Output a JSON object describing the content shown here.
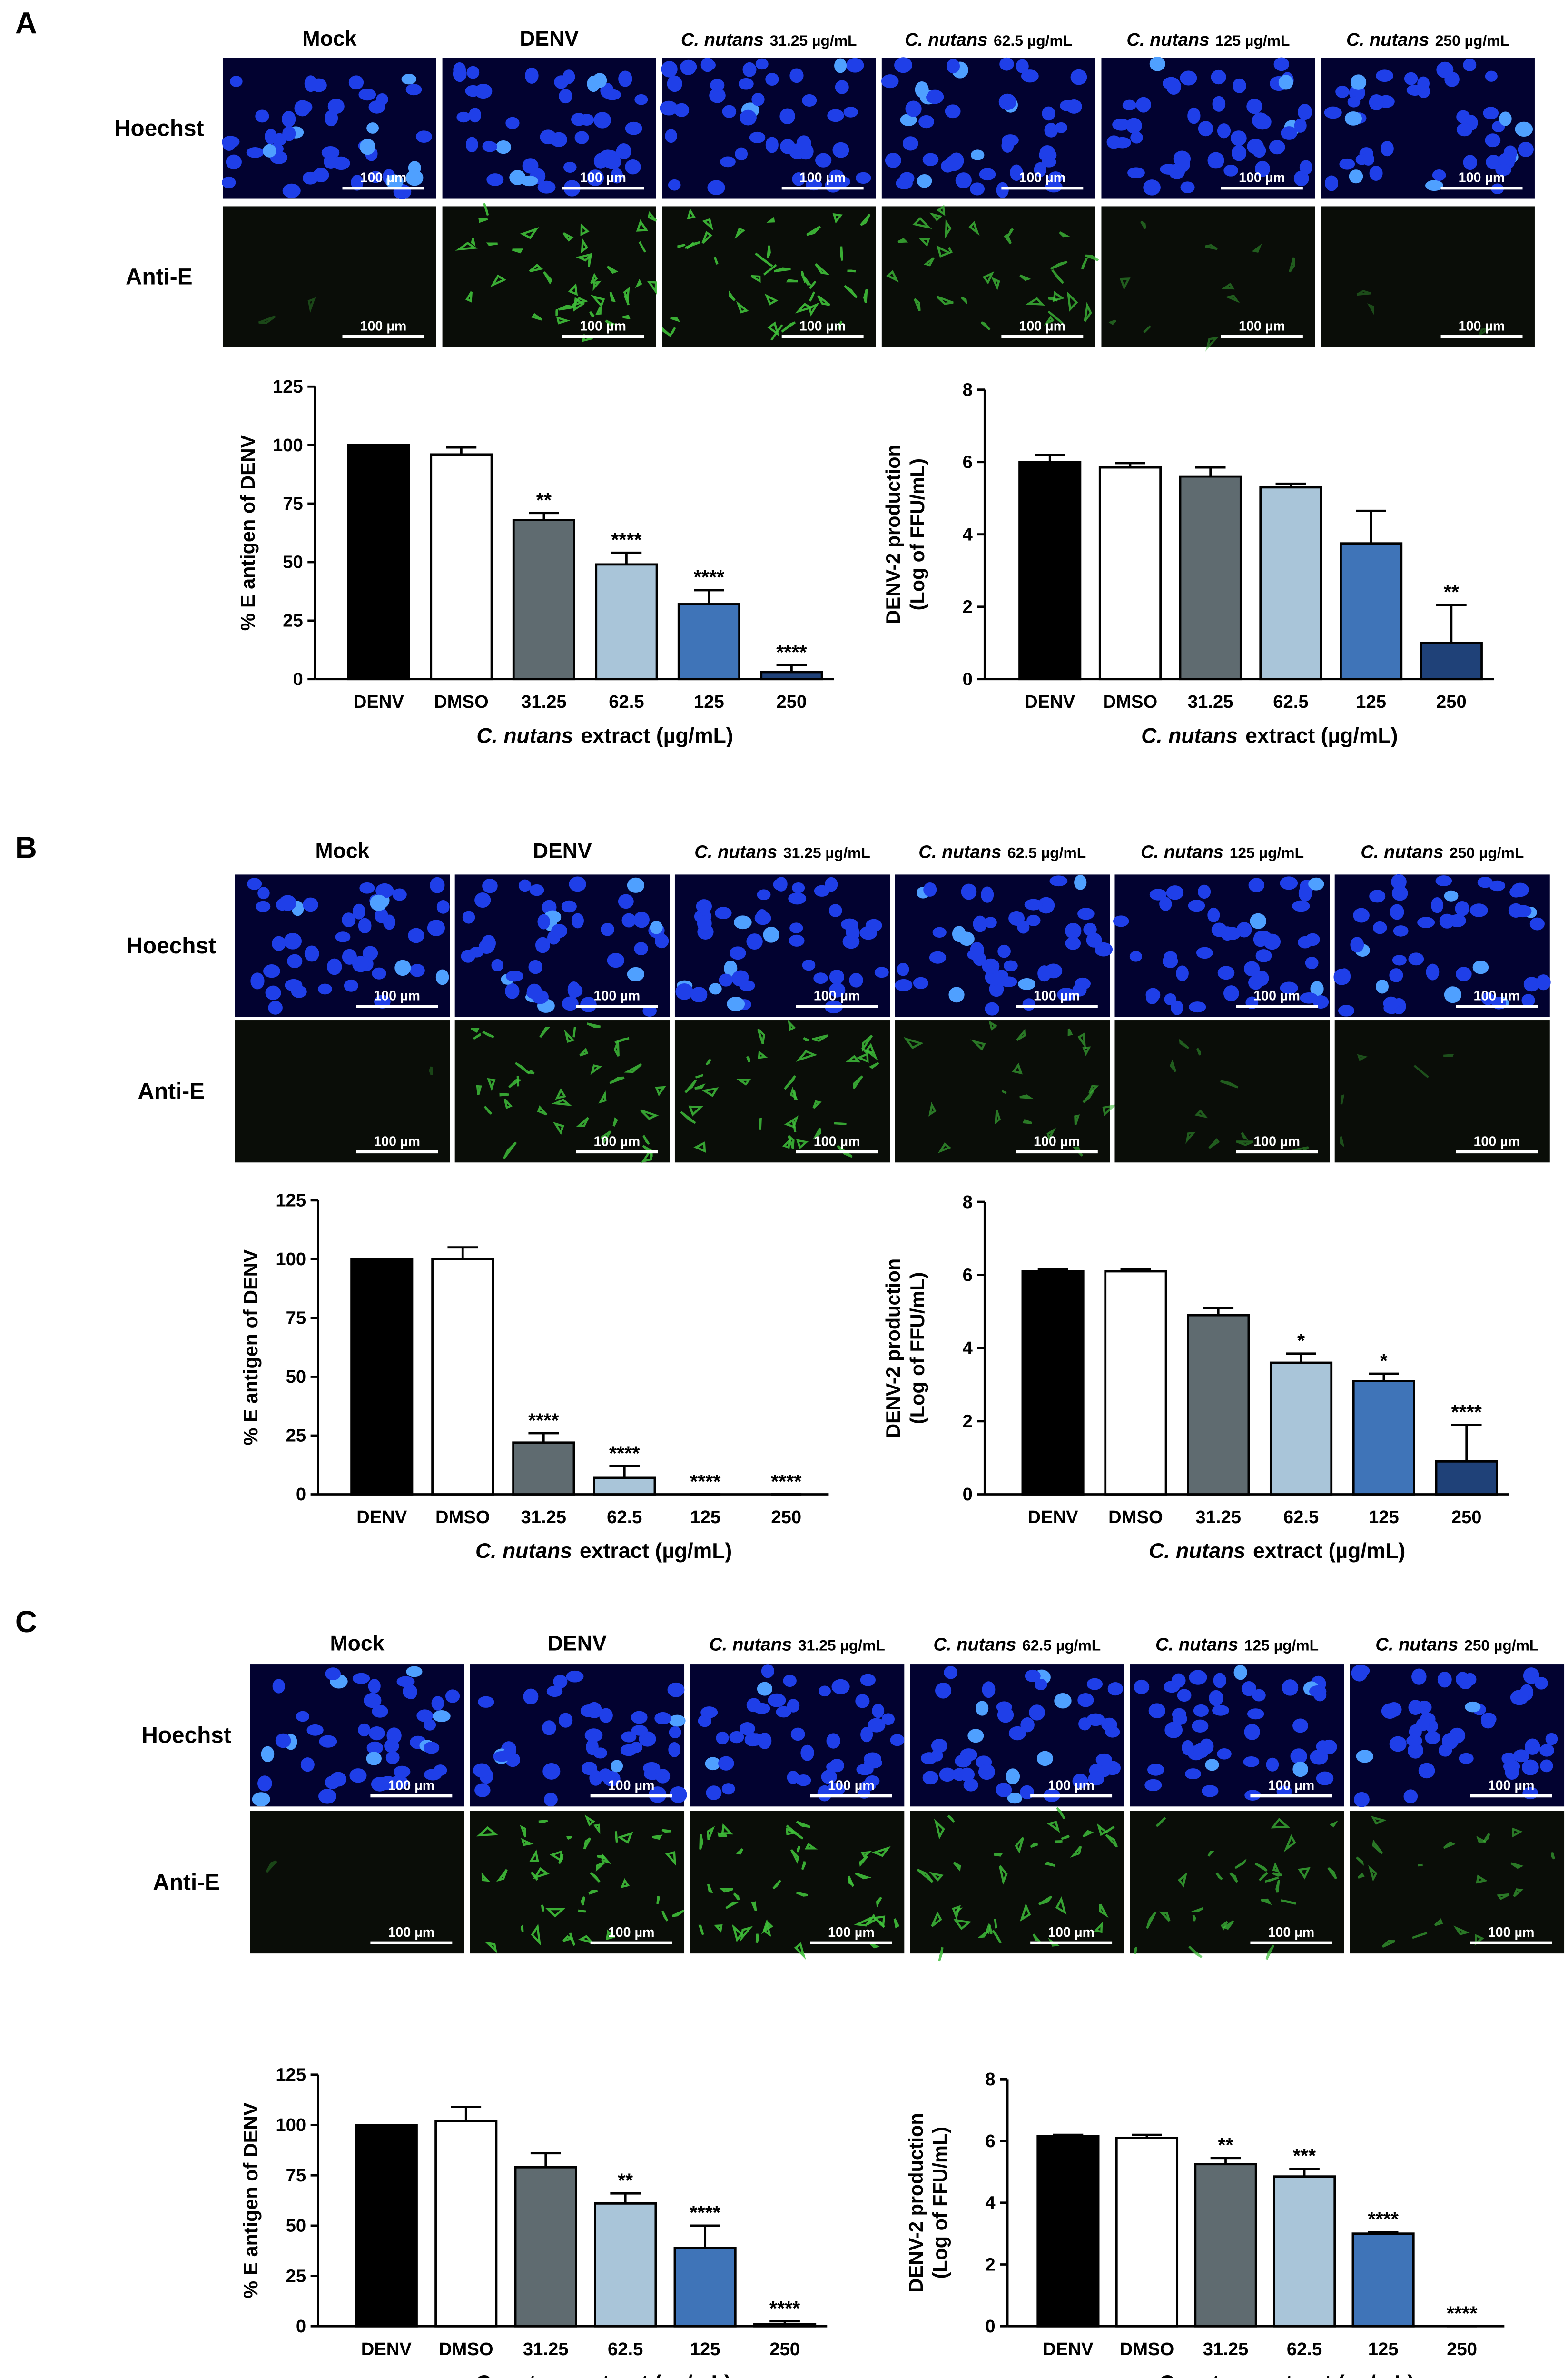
{
  "panels": [
    {
      "letter": "A",
      "columns": [
        {
          "label": "Mock"
        },
        {
          "label": "DENV"
        },
        {
          "species": "C. nutans",
          "dose": "31.25 µg/mL"
        },
        {
          "species": "C. nutans",
          "dose": "62.5 µg/mL"
        },
        {
          "species": "C. nutans",
          "dose": "125 µg/mL"
        },
        {
          "species": "C. nutans",
          "dose": "250 µg/mL"
        }
      ],
      "rows": [
        "Hoechst",
        "Anti-E"
      ],
      "scale_bar": "100 µm"
    },
    {
      "letter": "B",
      "columns": [
        {
          "label": "Mock"
        },
        {
          "label": "DENV"
        },
        {
          "species": "C. nutans",
          "dose": "31.25 µg/mL"
        },
        {
          "species": "C. nutans",
          "dose": "62.5 µg/mL"
        },
        {
          "species": "C. nutans",
          "dose": "125 µg/mL"
        },
        {
          "species": "C. nutans",
          "dose": "250 µg/mL"
        }
      ],
      "rows": [
        "Hoechst",
        "Anti-E"
      ],
      "scale_bar": "100 µm"
    },
    {
      "letter": "C",
      "columns": [
        {
          "label": "Mock"
        },
        {
          "label": "DENV"
        },
        {
          "species": "C. nutans",
          "dose": "31.25 µg/mL"
        },
        {
          "species": "C. nutans",
          "dose": "62.5 µg/mL"
        },
        {
          "species": "C. nutans",
          "dose": "125 µg/mL"
        },
        {
          "species": "C. nutans",
          "dose": "250 µg/mL"
        }
      ],
      "rows": [
        "Hoechst",
        "Anti-E"
      ],
      "scale_bar": "100 µm"
    }
  ],
  "chart_data": [
    {
      "type": "bar",
      "y_label": [
        "% E antigen of DENV"
      ],
      "x_label_italic": "C. nutans",
      "x_label": "extract (µg/mL)",
      "categories": [
        "DENV",
        "DMSO",
        "31.25",
        "62.5",
        "125",
        "250"
      ],
      "colors": [
        "#000000",
        "#ffffff",
        "#5f6b70",
        "#a9c5d9",
        "#3f74b8",
        "#1f4178"
      ],
      "values": [
        100,
        96,
        68,
        49,
        32,
        3
      ],
      "errors": [
        0,
        3,
        3,
        5,
        6,
        3
      ],
      "annotations": [
        null,
        null,
        "**",
        "****",
        "****",
        "****"
      ],
      "ylim": [
        0,
        125
      ],
      "yticks": [
        0,
        25,
        50,
        75,
        100,
        125
      ]
    },
    {
      "type": "bar",
      "y_label": [
        "DENV-2 production",
        "(Log of FFU/mL)"
      ],
      "x_label_italic": "C. nutans",
      "x_label": "extract (µg/mL)",
      "categories": [
        "DENV",
        "DMSO",
        "31.25",
        "62.5",
        "125",
        "250"
      ],
      "colors": [
        "#000000",
        "#ffffff",
        "#5f6b70",
        "#a9c5d9",
        "#3f74b8",
        "#1f4178"
      ],
      "values": [
        6.0,
        5.85,
        5.6,
        5.3,
        3.75,
        1.0
      ],
      "errors": [
        0.2,
        0.12,
        0.25,
        0.1,
        0.9,
        1.05
      ],
      "annotations": [
        null,
        null,
        null,
        null,
        null,
        "**"
      ],
      "ylim": [
        0,
        8
      ],
      "yticks": [
        0,
        2,
        4,
        6,
        8
      ]
    },
    {
      "type": "bar",
      "y_label": [
        "% E antigen of DENV"
      ],
      "x_label_italic": "C. nutans",
      "x_label": "extract (µg/mL)",
      "categories": [
        "DENV",
        "DMSO",
        "31.25",
        "62.5",
        "125",
        "250"
      ],
      "colors": [
        "#000000",
        "#ffffff",
        "#5f6b70",
        "#a9c5d9",
        "#3f74b8",
        "#1f4178"
      ],
      "values": [
        100,
        100,
        22,
        7,
        0,
        0
      ],
      "errors": [
        0,
        5,
        4,
        5,
        0,
        0
      ],
      "annotations": [
        null,
        null,
        "****",
        "****",
        "****",
        "****"
      ],
      "ylim": [
        0,
        125
      ],
      "yticks": [
        0,
        25,
        50,
        75,
        100,
        125
      ]
    },
    {
      "type": "bar",
      "y_label": [
        "DENV-2 production",
        "(Log of FFU/mL)"
      ],
      "x_label_italic": "C. nutans",
      "x_label": "extract (µg/mL)",
      "categories": [
        "DENV",
        "DMSO",
        "31.25",
        "62.5",
        "125",
        "250"
      ],
      "colors": [
        "#000000",
        "#ffffff",
        "#5f6b70",
        "#a9c5d9",
        "#3f74b8",
        "#1f4178"
      ],
      "values": [
        6.1,
        6.1,
        4.9,
        3.6,
        3.1,
        0.9
      ],
      "errors": [
        0.05,
        0.07,
        0.2,
        0.25,
        0.2,
        1.0
      ],
      "annotations": [
        null,
        null,
        null,
        "*",
        "*",
        "****"
      ],
      "ylim": [
        0,
        8
      ],
      "yticks": [
        0,
        2,
        4,
        6,
        8
      ]
    },
    {
      "type": "bar",
      "y_label": [
        "% E antigen of DENV"
      ],
      "x_label_italic": "C. nutans",
      "x_label": "extract (µg/mL)",
      "categories": [
        "DENV",
        "DMSO",
        "31.25",
        "62.5",
        "125",
        "250"
      ],
      "colors": [
        "#000000",
        "#ffffff",
        "#5f6b70",
        "#a9c5d9",
        "#3f74b8",
        "#1f4178"
      ],
      "values": [
        100,
        102,
        79,
        61,
        39,
        1
      ],
      "errors": [
        0,
        7,
        7,
        5,
        11,
        1.5
      ],
      "annotations": [
        null,
        null,
        null,
        "**",
        "****",
        "****"
      ],
      "ylim": [
        0,
        125
      ],
      "yticks": [
        0,
        25,
        50,
        75,
        100,
        125
      ]
    },
    {
      "type": "bar",
      "y_label": [
        "DENV-2 production",
        "(Log of FFU/mL)"
      ],
      "x_label_italic": "C. nutans",
      "x_label": "extract (µg/mL)",
      "categories": [
        "DENV",
        "DMSO",
        "31.25",
        "62.5",
        "125",
        "250"
      ],
      "colors": [
        "#000000",
        "#ffffff",
        "#5f6b70",
        "#a9c5d9",
        "#3f74b8",
        "#1f4178"
      ],
      "values": [
        6.15,
        6.1,
        5.25,
        4.85,
        3.0,
        0
      ],
      "errors": [
        0.05,
        0.1,
        0.2,
        0.25,
        0.05,
        0
      ],
      "annotations": [
        null,
        null,
        "**",
        "***",
        "****",
        "****"
      ],
      "ylim": [
        0,
        8
      ],
      "yticks": [
        0,
        2,
        4,
        6,
        8
      ]
    }
  ]
}
